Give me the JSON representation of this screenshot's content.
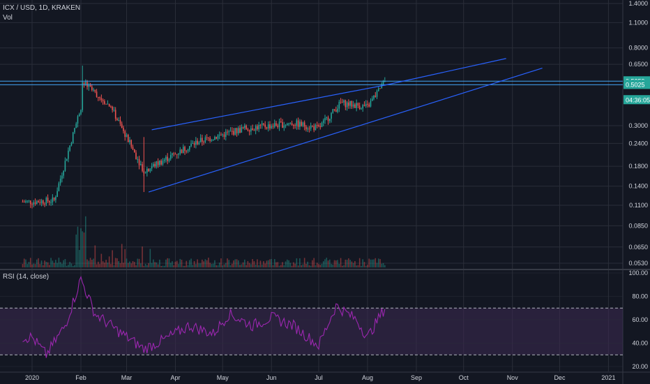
{
  "header": {
    "symbol_line": "ICX / USD, 1D, KRAKEN",
    "vol_label": "Vol",
    "rsi_label": "RSI (14, close)"
  },
  "colors": {
    "background": "#131722",
    "grid": "#2a2e39",
    "up": "#26a69a",
    "down": "#ef5350",
    "trend": "#2962ff",
    "horizontal": "#42a5f5",
    "rsi": "#9c27b0",
    "rsi_band": "#3c2a52"
  },
  "price_axis": {
    "scale": "log",
    "ticks": [
      "1.4000",
      "1.1000",
      "0.8000",
      "0.6500",
      "0.5259",
      "0.5025",
      "0.3000",
      "0.2400",
      "0.1800",
      "0.1400",
      "0.1100",
      "0.0850",
      "0.0650",
      "0.0530"
    ],
    "current_price_label": "0.5259",
    "prev_level_label": "0.5025",
    "countdown_label": "04:36:05"
  },
  "rsi_axis": {
    "ticks": [
      "100.00",
      "80.00",
      "60.00",
      "40.00",
      "20.00"
    ],
    "upper_band": 70,
    "lower_band": 30
  },
  "time_axis": {
    "labels": [
      "2020",
      "Feb",
      "Mar",
      "Apr",
      "May",
      "Jun",
      "Jul",
      "Aug",
      "Sep",
      "Oct",
      "Nov",
      "Dec",
      "2021"
    ]
  },
  "chart_data": {
    "type": "candlestick",
    "symbol": "ICX / USD",
    "interval": "1D",
    "exchange": "KRAKEN",
    "y_scale": "log",
    "key_price_points": [
      {
        "date": "2020-01-01",
        "close": 0.115
      },
      {
        "date": "2020-01-15",
        "close": 0.117
      },
      {
        "date": "2020-02-01",
        "close": 0.38
      },
      {
        "date": "2020-02-02",
        "high": 0.64,
        "close": 0.52
      },
      {
        "date": "2020-02-20",
        "close": 0.38
      },
      {
        "date": "2020-03-12",
        "low": 0.13,
        "close": 0.17
      },
      {
        "date": "2020-04-15",
        "close": 0.245
      },
      {
        "date": "2020-05-15",
        "close": 0.29
      },
      {
        "date": "2020-06-15",
        "close": 0.31
      },
      {
        "date": "2020-07-01",
        "close": 0.29
      },
      {
        "date": "2020-07-15",
        "close": 0.4
      },
      {
        "date": "2020-08-01",
        "close": 0.38
      },
      {
        "date": "2020-08-12",
        "close": 0.5259
      }
    ],
    "horizontal_levels": [
      0.5259,
      0.5025
    ],
    "trendlines": [
      {
        "from": {
          "date": "2020-03-17",
          "price": 0.285
        },
        "to": {
          "date": "2020-08-12",
          "price": 0.5
        }
      },
      {
        "from": {
          "date": "2020-08-12",
          "price": 0.5
        },
        "to": {
          "date": "2020-10-28",
          "price": 0.7
        }
      },
      {
        "from": {
          "date": "2020-03-15",
          "price": 0.13
        },
        "to": {
          "date": "2020-11-20",
          "price": 0.62
        }
      }
    ],
    "rsi": {
      "period": 14,
      "points": [
        {
          "date": "2020-01-01",
          "value": 45
        },
        {
          "date": "2020-01-10",
          "value": 30
        },
        {
          "date": "2020-01-22",
          "value": 55
        },
        {
          "date": "2020-02-01",
          "value": 95
        },
        {
          "date": "2020-02-10",
          "value": 65
        },
        {
          "date": "2020-02-25",
          "value": 50
        },
        {
          "date": "2020-03-12",
          "value": 35
        },
        {
          "date": "2020-03-25",
          "value": 43
        },
        {
          "date": "2020-04-10",
          "value": 55
        },
        {
          "date": "2020-04-25",
          "value": 48
        },
        {
          "date": "2020-05-05",
          "value": 65
        },
        {
          "date": "2020-05-20",
          "value": 55
        },
        {
          "date": "2020-06-01",
          "value": 62
        },
        {
          "date": "2020-06-15",
          "value": 55
        },
        {
          "date": "2020-07-01",
          "value": 38
        },
        {
          "date": "2020-07-12",
          "value": 72
        },
        {
          "date": "2020-07-25",
          "value": 60
        },
        {
          "date": "2020-08-01",
          "value": 45
        },
        {
          "date": "2020-08-12",
          "value": 70
        }
      ]
    }
  }
}
